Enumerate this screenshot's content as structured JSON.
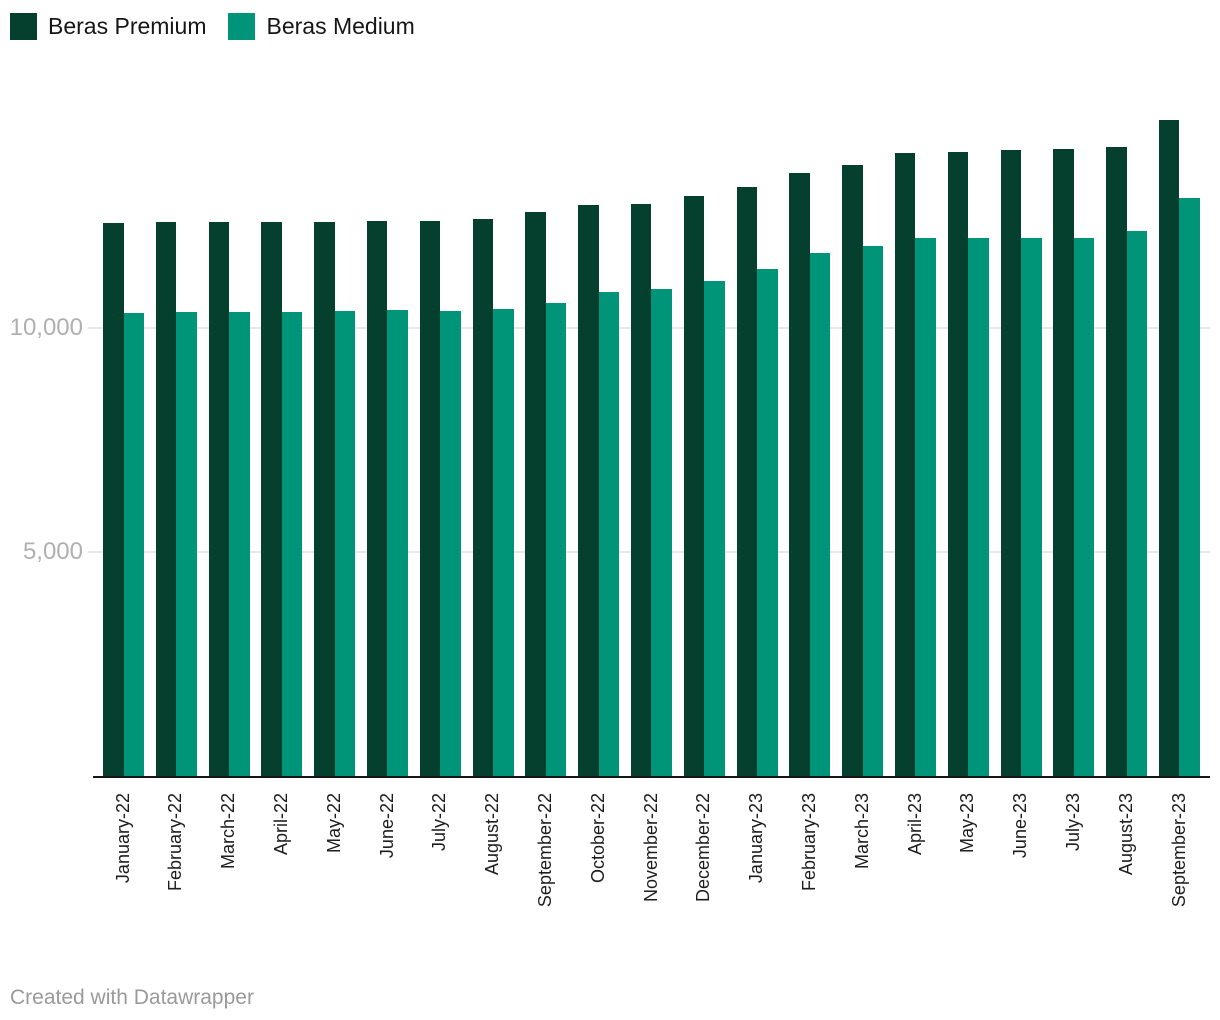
{
  "legend": {
    "items": [
      {
        "label": "Beras Premium",
        "color": "#05402e"
      },
      {
        "label": "Beras Medium",
        "color": "#009478"
      }
    ]
  },
  "footer": {
    "text": "Created with Datawrapper"
  },
  "chart_data": {
    "type": "bar",
    "title": "",
    "xlabel": "",
    "ylabel": "",
    "categories": [
      "January-22",
      "February-22",
      "March-22",
      "April-22",
      "May-22",
      "June-22",
      "July-22",
      "August-22",
      "September-22",
      "October-22",
      "November-22",
      "December-22",
      "January-23",
      "February-23",
      "March-23",
      "April-23",
      "May-23",
      "June-23",
      "July-23",
      "August-23",
      "September-23"
    ],
    "series": [
      {
        "name": "Beras Premium",
        "color": "#05402e",
        "values": [
          12350,
          12370,
          12370,
          12370,
          12370,
          12400,
          12400,
          12440,
          12590,
          12740,
          12770,
          12940,
          13150,
          13470,
          13650,
          13910,
          13930,
          13980,
          13990,
          14050,
          14640
        ]
      },
      {
        "name": "Beras Medium",
        "color": "#009478",
        "values": [
          10330,
          10350,
          10360,
          10360,
          10390,
          10400,
          10380,
          10420,
          10550,
          10800,
          10880,
          11050,
          11320,
          11680,
          11830,
          12020,
          12010,
          12000,
          12010,
          12160,
          12910
        ]
      }
    ],
    "ylim": [
      0,
      14730
    ],
    "yticks": [
      {
        "value": 5000,
        "label": "5,000"
      },
      {
        "value": 10000,
        "label": "10,000"
      }
    ],
    "grid": "horizontal",
    "legend_position": "top-left",
    "axis_color": "#161616",
    "gridline_color": "#e8e8e8",
    "ytick_label_color": "#b0b0b0",
    "xtick_label_color": "#1d1d1d",
    "background_color": "#ffffff"
  }
}
